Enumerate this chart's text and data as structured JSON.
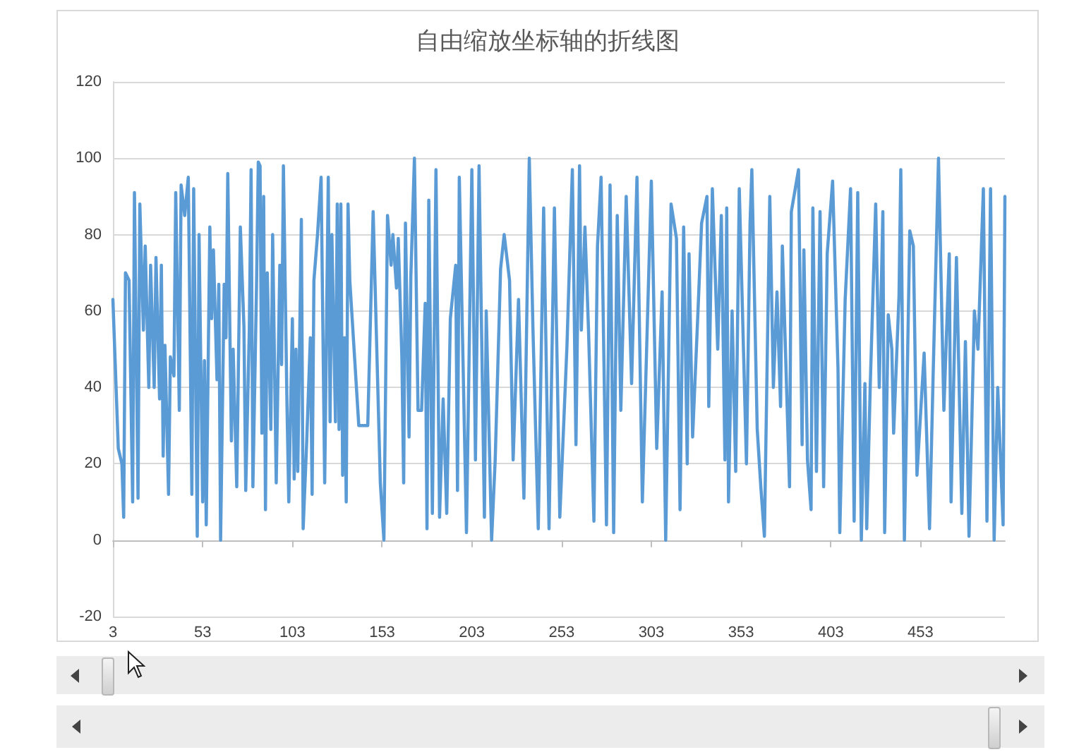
{
  "chart_data": {
    "type": "line",
    "title": "自由缩放坐标轴的折线图",
    "x": [
      3,
      6,
      8,
      9,
      10,
      12,
      14,
      15,
      17,
      18,
      20,
      21,
      23,
      24,
      26,
      27,
      29,
      30,
      31,
      32,
      34,
      35,
      37,
      38,
      40,
      41,
      43,
      45,
      47,
      48,
      50,
      51,
      53,
      54,
      55,
      57,
      58,
      59,
      61,
      62,
      63,
      65,
      66,
      67,
      69,
      70,
      72,
      74,
      76,
      77,
      79,
      80,
      81,
      83,
      84,
      85,
      86,
      87,
      88,
      89,
      91,
      92,
      94,
      96,
      97,
      98,
      100,
      101,
      103,
      104,
      105,
      106,
      108,
      109,
      111,
      113,
      114,
      115,
      117,
      119,
      121,
      123,
      124,
      125,
      127,
      128,
      129,
      130,
      131,
      132,
      133,
      134,
      135,
      140,
      145,
      148,
      152,
      154,
      156,
      158,
      159,
      161,
      162,
      164,
      165,
      166,
      168,
      169,
      171,
      173,
      175,
      177,
      178,
      179,
      181,
      183,
      185,
      187,
      189,
      191,
      194,
      195,
      196,
      200,
      203,
      205,
      207,
      210,
      211,
      214,
      216,
      219,
      221,
      224,
      226,
      229,
      232,
      235,
      237,
      240,
      243,
      246,
      249,
      252,
      256,
      259,
      261,
      263,
      264,
      266,
      268,
      271,
      273,
      275,
      278,
      280,
      282,
      284,
      286,
      289,
      292,
      295,
      298,
      303,
      306,
      309,
      311,
      314,
      317,
      319,
      321,
      323,
      324,
      326,
      329,
      331,
      334,
      335,
      337,
      340,
      342,
      344,
      345,
      346,
      348,
      350,
      352,
      356,
      358,
      359,
      362,
      364,
      366,
      369,
      371,
      373,
      375,
      376,
      380,
      381,
      385,
      387,
      388,
      390,
      392,
      393,
      395,
      397,
      399,
      401,
      404,
      407,
      408,
      411,
      414,
      416,
      418,
      420,
      422,
      423,
      425,
      428,
      430,
      432,
      433,
      435,
      437,
      438,
      441,
      442,
      444,
      447,
      449,
      451,
      455,
      458,
      460,
      463,
      466,
      469,
      470,
      473,
      476,
      478,
      480,
      481,
      483,
      485,
      488,
      490,
      492,
      494,
      496,
      499,
      500
    ],
    "series": [
      {
        "color": "#5b9bd5",
        "values": [
          63,
          24,
          20,
          6,
          70,
          68,
          10,
          91,
          11,
          88,
          55,
          77,
          40,
          72,
          40,
          74,
          37,
          72,
          22,
          51,
          12,
          48,
          43,
          91,
          34,
          93,
          85,
          95,
          12,
          92,
          1,
          80,
          10,
          47,
          4,
          82,
          58,
          76,
          42,
          67,
          0,
          67,
          53,
          96,
          26,
          50,
          14,
          82,
          56,
          13,
          55,
          97,
          14,
          66,
          99,
          98,
          28,
          90,
          8,
          70,
          29,
          80,
          15,
          72,
          46,
          98,
          35,
          10,
          58,
          16,
          50,
          18,
          84,
          3,
          26,
          53,
          12,
          68,
          80,
          95,
          15,
          95,
          31,
          80,
          31,
          88,
          29,
          88,
          17,
          53,
          10,
          88,
          68,
          30,
          30,
          86,
          15,
          0,
          85,
          72,
          80,
          66,
          79,
          48,
          15,
          83,
          27,
          69,
          100,
          34,
          34,
          62,
          3,
          89,
          7,
          97,
          6,
          37,
          7,
          58,
          72,
          13,
          95,
          2,
          97,
          21,
          98,
          6,
          60,
          0,
          21,
          71,
          80,
          68,
          21,
          63,
          11,
          100,
          56,
          3,
          87,
          3,
          87,
          6,
          51,
          97,
          25,
          98,
          55,
          82,
          55,
          5,
          77,
          95,
          4,
          93,
          2,
          85,
          34,
          90,
          41,
          95,
          10,
          94,
          24,
          65,
          0,
          88,
          79,
          8,
          82,
          20,
          75,
          27,
          60,
          83,
          90,
          35,
          92,
          50,
          85,
          21,
          87,
          10,
          60,
          18,
          92,
          20,
          83,
          97,
          29,
          14,
          1,
          90,
          40,
          65,
          35,
          77,
          14,
          86,
          97,
          25,
          76,
          21,
          8,
          87,
          18,
          86,
          14,
          75,
          94,
          45,
          2,
          63,
          92,
          5,
          91,
          0,
          41,
          3,
          41,
          88,
          40,
          86,
          2,
          59,
          50,
          28,
          64,
          97,
          0,
          81,
          77,
          17,
          49,
          3,
          43,
          100,
          34,
          75,
          10,
          74,
          7,
          52,
          1,
          20,
          60,
          50,
          92,
          5,
          92,
          0,
          40,
          4,
          90
        ]
      }
    ],
    "xlim": [
      3,
      500
    ],
    "xticks": [
      3,
      53,
      103,
      153,
      203,
      253,
      303,
      353,
      403,
      453
    ],
    "ylim": [
      -20,
      120
    ],
    "yticks": [
      -20,
      0,
      20,
      40,
      60,
      80,
      100,
      120
    ],
    "grid": "y",
    "marker": "none",
    "line_style": "solid"
  }
}
